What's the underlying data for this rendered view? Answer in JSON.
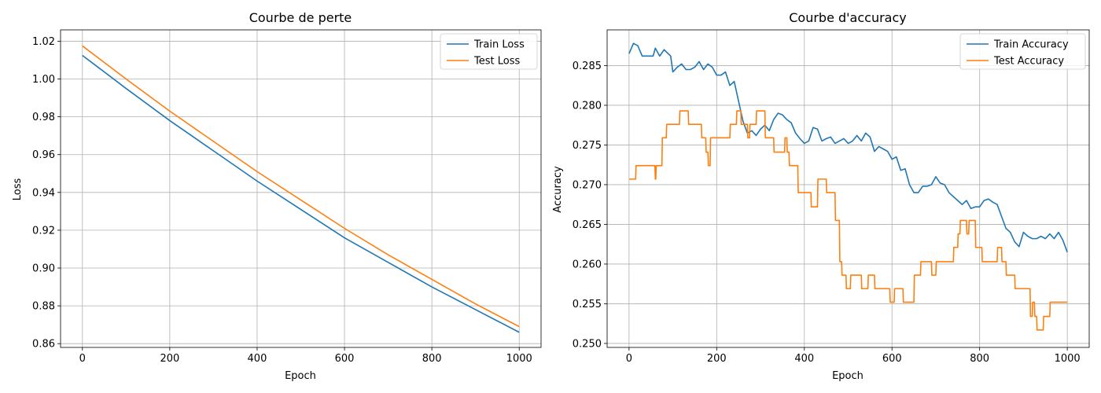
{
  "chart_data": [
    {
      "type": "line",
      "title": "Courbe de perte",
      "xlabel": "Epoch",
      "ylabel": "Loss",
      "xlim": [
        -50,
        1050
      ],
      "ylim": [
        0.858,
        1.026
      ],
      "xticks": [
        0,
        200,
        400,
        600,
        800,
        1000
      ],
      "yticks": [
        0.86,
        0.88,
        0.9,
        0.92,
        0.94,
        0.96,
        0.98,
        1.0,
        1.02
      ],
      "ytick_labels": [
        "0.86",
        "0.88",
        "0.90",
        "0.92",
        "0.94",
        "0.96",
        "0.98",
        "1.00",
        "1.02"
      ],
      "grid": true,
      "legend_position": "upper-right",
      "series": [
        {
          "name": "Train Loss",
          "color": "#1f77b4",
          "x": [
            0,
            100,
            200,
            300,
            400,
            500,
            600,
            700,
            800,
            900,
            1000
          ],
          "y": [
            1.0125,
            0.995,
            0.978,
            0.962,
            0.946,
            0.931,
            0.916,
            0.903,
            0.89,
            0.878,
            0.866
          ]
        },
        {
          "name": "Test Loss",
          "color": "#ff7f0e",
          "x": [
            0,
            100,
            200,
            300,
            400,
            500,
            600,
            700,
            800,
            900,
            1000
          ],
          "y": [
            1.0175,
            1.0,
            0.983,
            0.967,
            0.951,
            0.936,
            0.921,
            0.907,
            0.894,
            0.881,
            0.869
          ]
        }
      ]
    },
    {
      "type": "line",
      "title": "Courbe d'accuracy",
      "xlabel": "Epoch",
      "ylabel": "Accuracy",
      "xlim": [
        -50,
        1050
      ],
      "ylim": [
        0.2495,
        0.2895
      ],
      "xticks": [
        0,
        200,
        400,
        600,
        800,
        1000
      ],
      "yticks": [
        0.25,
        0.255,
        0.26,
        0.265,
        0.27,
        0.275,
        0.28,
        0.285
      ],
      "ytick_labels": [
        "0.250",
        "0.255",
        "0.260",
        "0.265",
        "0.270",
        "0.275",
        "0.280",
        "0.285"
      ],
      "grid": true,
      "legend_position": "upper-right",
      "series": [
        {
          "name": "Train Accuracy",
          "color": "#1f77b4",
          "x": [
            0,
            10,
            20,
            30,
            40,
            55,
            60,
            70,
            80,
            95,
            100,
            110,
            120,
            130,
            140,
            150,
            160,
            170,
            180,
            190,
            200,
            210,
            220,
            230,
            240,
            250,
            260,
            270,
            280,
            290,
            300,
            310,
            320,
            330,
            340,
            350,
            360,
            370,
            380,
            390,
            400,
            410,
            420,
            430,
            440,
            450,
            460,
            470,
            480,
            490,
            500,
            510,
            520,
            530,
            540,
            550,
            560,
            570,
            580,
            590,
            600,
            610,
            620,
            630,
            640,
            650,
            660,
            670,
            680,
            690,
            700,
            710,
            720,
            730,
            740,
            750,
            760,
            770,
            780,
            790,
            800,
            810,
            820,
            830,
            840,
            850,
            860,
            870,
            880,
            890,
            900,
            910,
            920,
            930,
            940,
            950,
            960,
            970,
            980,
            990,
            1000
          ],
          "y": [
            0.2865,
            0.2878,
            0.2875,
            0.2862,
            0.2862,
            0.2862,
            0.2872,
            0.2862,
            0.287,
            0.2862,
            0.2842,
            0.2848,
            0.2852,
            0.2845,
            0.2845,
            0.2848,
            0.2855,
            0.2845,
            0.2852,
            0.2848,
            0.2838,
            0.2838,
            0.2842,
            0.2825,
            0.283,
            0.2805,
            0.278,
            0.2765,
            0.2768,
            0.2762,
            0.277,
            0.2775,
            0.2768,
            0.2782,
            0.279,
            0.2788,
            0.2782,
            0.2778,
            0.2765,
            0.2758,
            0.2752,
            0.2755,
            0.2772,
            0.277,
            0.2755,
            0.2758,
            0.276,
            0.2752,
            0.2755,
            0.2758,
            0.2752,
            0.2755,
            0.2762,
            0.2755,
            0.2765,
            0.276,
            0.2742,
            0.2748,
            0.2745,
            0.2742,
            0.2732,
            0.2735,
            0.2718,
            0.272,
            0.27,
            0.269,
            0.269,
            0.2698,
            0.2698,
            0.27,
            0.271,
            0.2702,
            0.27,
            0.269,
            0.2685,
            0.268,
            0.2675,
            0.268,
            0.267,
            0.2672,
            0.2672,
            0.268,
            0.2682,
            0.2678,
            0.2675,
            0.266,
            0.2645,
            0.264,
            0.2628,
            0.2622,
            0.264,
            0.2635,
            0.2632,
            0.2632,
            0.2635,
            0.2632,
            0.2638,
            0.2632,
            0.264,
            0.263,
            0.2615
          ]
        },
        {
          "name": "Test Accuracy",
          "color": "#ff7f0e",
          "x": [
            0,
            15,
            16,
            59,
            60,
            61,
            62,
            75,
            76,
            85,
            86,
            115,
            116,
            135,
            136,
            165,
            166,
            175,
            176,
            180,
            181,
            185,
            186,
            230,
            231,
            245,
            246,
            255,
            256,
            270,
            271,
            275,
            276,
            290,
            291,
            310,
            311,
            330,
            331,
            355,
            356,
            360,
            361,
            365,
            366,
            385,
            386,
            415,
            416,
            430,
            431,
            450,
            451,
            470,
            471,
            480,
            481,
            485,
            486,
            495,
            496,
            505,
            506,
            530,
            531,
            545,
            546,
            560,
            561,
            595,
            596,
            605,
            606,
            625,
            626,
            650,
            651,
            665,
            666,
            690,
            691,
            700,
            701,
            740,
            741,
            750,
            751,
            755,
            756,
            770,
            771,
            775,
            776,
            790,
            791,
            805,
            806,
            840,
            841,
            850,
            851,
            860,
            861,
            880,
            881,
            915,
            916,
            920,
            921,
            925,
            926,
            930,
            931,
            945,
            946,
            960,
            961,
            1000
          ],
          "y": [
            0.2707,
            0.2707,
            0.2724,
            0.2724,
            0.2707,
            0.2707,
            0.2724,
            0.2724,
            0.2759,
            0.2759,
            0.2776,
            0.2776,
            0.2793,
            0.2793,
            0.2776,
            0.2776,
            0.2759,
            0.2759,
            0.2741,
            0.2741,
            0.2724,
            0.2724,
            0.2759,
            0.2759,
            0.2776,
            0.2776,
            0.2793,
            0.2793,
            0.2776,
            0.2776,
            0.2759,
            0.2759,
            0.2776,
            0.2776,
            0.2793,
            0.2793,
            0.2759,
            0.2759,
            0.2741,
            0.2741,
            0.2759,
            0.2759,
            0.2741,
            0.2741,
            0.2724,
            0.2724,
            0.269,
            0.269,
            0.2672,
            0.2672,
            0.2707,
            0.2707,
            0.269,
            0.269,
            0.2655,
            0.2655,
            0.2603,
            0.2603,
            0.2586,
            0.2586,
            0.2569,
            0.2569,
            0.2586,
            0.2586,
            0.2569,
            0.2569,
            0.2586,
            0.2586,
            0.2569,
            0.2569,
            0.2552,
            0.2552,
            0.2569,
            0.2569,
            0.2552,
            0.2552,
            0.2586,
            0.2586,
            0.2603,
            0.2603,
            0.2586,
            0.2586,
            0.2603,
            0.2603,
            0.2621,
            0.2621,
            0.2638,
            0.2638,
            0.2655,
            0.2655,
            0.2638,
            0.2638,
            0.2655,
            0.2655,
            0.2621,
            0.2621,
            0.2603,
            0.2603,
            0.2621,
            0.2621,
            0.2603,
            0.2603,
            0.2586,
            0.2586,
            0.2569,
            0.2569,
            0.2534,
            0.2534,
            0.2552,
            0.2552,
            0.2534,
            0.2534,
            0.2517,
            0.2517,
            0.2534,
            0.2534,
            0.2552,
            0.2552
          ]
        }
      ]
    }
  ]
}
